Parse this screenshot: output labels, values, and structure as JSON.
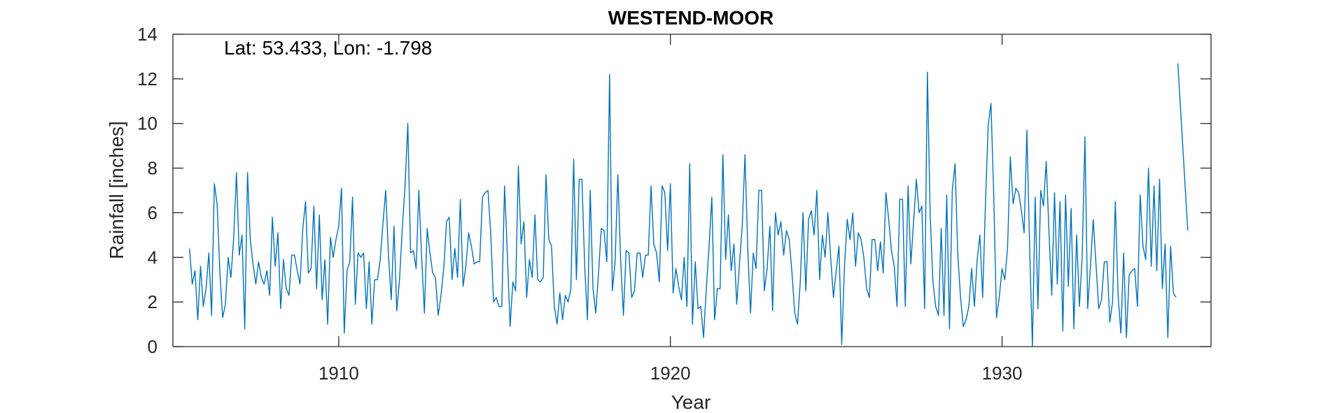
{
  "chart_data": {
    "type": "line",
    "title": "WESTEND-MOOR",
    "annotation": "Lat: 53.433, Lon: -1.798",
    "xlabel": "Year",
    "ylabel": "Rainfall [inches]",
    "xlim": [
      1905.0,
      1936.3
    ],
    "ylim": [
      0,
      14
    ],
    "xticks": [
      1910,
      1920,
      1930
    ],
    "xtick_labels": [
      "1910",
      "1920",
      "1930"
    ],
    "yticks": [
      0,
      2,
      4,
      6,
      8,
      10,
      12,
      14
    ],
    "ytick_labels": [
      "0",
      "2",
      "4",
      "6",
      "8",
      "10",
      "12",
      "14"
    ],
    "grid": false,
    "line_color": "#0072BD",
    "series": [
      {
        "x_start": 1905.5,
        "x_step": 0.08333,
        "values": [
          4.4,
          2.8,
          3.4,
          1.2,
          3.6,
          1.8,
          2.6,
          4.2,
          1.4,
          7.3,
          6.4,
          3.3,
          1.3,
          1.9,
          4.0,
          3.1,
          4.9,
          7.8,
          4.1,
          5.0,
          0.8,
          7.8,
          4.8,
          3.7,
          2.8,
          3.8,
          3.1,
          2.8,
          3.4,
          2.3,
          5.8,
          3.6,
          5.1,
          1.7,
          3.9,
          2.6,
          2.3,
          4.1,
          4.1,
          3.4,
          2.8,
          5.3,
          6.5,
          3.3,
          3.5,
          6.3,
          2.6,
          5.9,
          2.1,
          3.9,
          1.0,
          4.9,
          4.0,
          4.8,
          5.4,
          7.1,
          0.6,
          3.4,
          3.8,
          6.7,
          1.9,
          4.2,
          4.0,
          4.2,
          1.7,
          3.8,
          1.0,
          3.0,
          3.0,
          3.9,
          5.5,
          7.0,
          4.1,
          2.1,
          5.4,
          1.6,
          3.0,
          5.3,
          7.2,
          10.0,
          4.2,
          4.3,
          3.5,
          7.0,
          4.0,
          1.5,
          5.3,
          4.2,
          3.3,
          3.1,
          1.4,
          2.3,
          3.5,
          5.6,
          5.8,
          3.0,
          4.4,
          3.1,
          6.6,
          2.7,
          3.6,
          5.1,
          4.5,
          3.7,
          3.8,
          3.8,
          6.7,
          6.9,
          7.0,
          5.1,
          2.0,
          2.2,
          1.8,
          1.8,
          7.2,
          4.2,
          0.9,
          2.9,
          2.5,
          8.1,
          4.6,
          5.6,
          2.2,
          3.9,
          3.1,
          5.9,
          3.0,
          2.9,
          3.1,
          7.7,
          4.8,
          4.5,
          1.8,
          1.0,
          2.4,
          1.2,
          2.3,
          2.0,
          2.6,
          8.4,
          3.0,
          7.5,
          7.5,
          3.6,
          1.2,
          7.0,
          2.6,
          1.5,
          3.3,
          5.3,
          5.2,
          3.8,
          12.2,
          2.5,
          3.8,
          7.7,
          3.9,
          1.4,
          4.3,
          4.2,
          2.2,
          2.5,
          4.2,
          4.2,
          3.1,
          4.1,
          4.1,
          7.2,
          4.6,
          4.2,
          2.9,
          7.2,
          6.9,
          4.3,
          7.3,
          2.4,
          3.5,
          2.7,
          2.1,
          4.0,
          1.8,
          8.2,
          1.0,
          3.8,
          1.7,
          1.8,
          0.4,
          2.6,
          4.5,
          6.7,
          1.2,
          2.6,
          2.6,
          8.6,
          3.9,
          5.9,
          3.4,
          4.6,
          1.9,
          3.7,
          5.4,
          8.6,
          4.4,
          1.5,
          4.2,
          3.5,
          7.0,
          7.0,
          2.5,
          3.5,
          5.4,
          1.6,
          6.0,
          5.0,
          5.6,
          4.1,
          5.2,
          4.8,
          3.3,
          1.5,
          1.0,
          2.9,
          6.0,
          2.5,
          5.7,
          6.1,
          5.0,
          7.0,
          3.0,
          5.0,
          4.0,
          6.0,
          4.0,
          2.2,
          3.4,
          4.5,
          0.1,
          3.6,
          5.7,
          4.8,
          6.0,
          3.6,
          5.1,
          4.8,
          4.0,
          2.6,
          2.2,
          4.8,
          4.8,
          3.4,
          4.7,
          3.3,
          6.9,
          5.7,
          4.3,
          3.6,
          1.8,
          6.6,
          6.6,
          1.8,
          7.2,
          3.7,
          5.6,
          7.5,
          6.0,
          6.3,
          1.7,
          12.3,
          5.9,
          2.9,
          1.8,
          1.4,
          5.3,
          1.4,
          6.8,
          0.8,
          7.0,
          8.2,
          4.1,
          2.2,
          0.9,
          1.2,
          1.8,
          3.5,
          1.8,
          3.9,
          5.0,
          2.2,
          6.4,
          9.9,
          10.9,
          6.8,
          1.3,
          2.2,
          3.5,
          3.0,
          4.4,
          8.5,
          6.4,
          7.1,
          6.9,
          6.1,
          5.1,
          9.7,
          4.4,
          0.0,
          6.7,
          1.7,
          7.0,
          6.3,
          8.3,
          5.1,
          2.3,
          6.9,
          2.8,
          6.5,
          0.7,
          6.8,
          2.7,
          6.2,
          0.8,
          5.0,
          1.8,
          4.0,
          9.4,
          1.7,
          3.6,
          5.7,
          3.7,
          1.7,
          2.1,
          3.8,
          3.8,
          1.1,
          2.0,
          6.5,
          2.3,
          0.6,
          4.2,
          0.4,
          3.2,
          3.4,
          3.5,
          1.8,
          6.8,
          4.5,
          3.9,
          8.0,
          3.6,
          7.2,
          3.4,
          7.5,
          2.6,
          4.6,
          0.4,
          4.5,
          2.4,
          2.2
        ]
      },
      {
        "x": [
          1935.3,
          1935.6
        ],
        "values": [
          12.7,
          5.2
        ]
      }
    ]
  }
}
